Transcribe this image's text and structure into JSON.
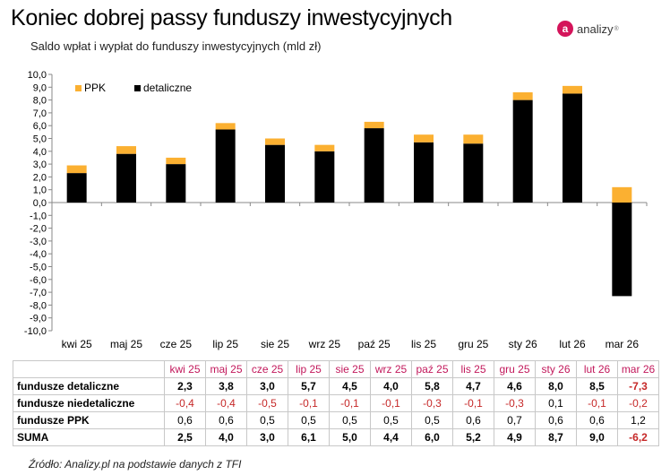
{
  "header": {
    "title": "Koniec dobrej passy funduszy inwestycyjnych",
    "subtitle": "Saldo wpłat i wypłat do funduszy inwestycyjnych (mld zł)",
    "logo_text": "analizy",
    "logo_letter": "a",
    "logo_reg": "®"
  },
  "colors": {
    "ppk": "#fbb031",
    "detaliczne": "#000000",
    "negative": "#c62828",
    "month_header": "#c2185b"
  },
  "chart_data": {
    "type": "bar",
    "stacked": true,
    "categories": [
      "kwi 25",
      "maj 25",
      "cze 25",
      "lip 25",
      "sie 25",
      "wrz 25",
      "paź 25",
      "lis 25",
      "gru 25",
      "sty 26",
      "lut 26",
      "mar 26"
    ],
    "series": [
      {
        "name": "detaliczne",
        "values": [
          2.3,
          3.8,
          3.0,
          5.7,
          4.5,
          4.0,
          5.8,
          4.7,
          4.6,
          8.0,
          8.5,
          -7.3
        ]
      },
      {
        "name": "PPK",
        "values": [
          0.6,
          0.6,
          0.5,
          0.5,
          0.5,
          0.5,
          0.5,
          0.6,
          0.7,
          0.6,
          0.6,
          1.2
        ]
      }
    ],
    "ylim": [
      -10,
      10
    ],
    "ytick_labels": [
      "10,0",
      "9,0",
      "8,0",
      "7,0",
      "6,0",
      "5,0",
      "4,0",
      "3,0",
      "2,0",
      "1,0",
      "0,0",
      "-1,0",
      "-2,0",
      "-3,0",
      "-4,0",
      "-5,0",
      "-6,0",
      "-7,0",
      "-8,0",
      "-9,0",
      "-10,0"
    ],
    "legend": [
      {
        "label": "PPK"
      },
      {
        "label": "detaliczne"
      }
    ],
    "legend_position": "top-left",
    "title": "Saldo wpłat i wypłat do funduszy inwestycyjnych (mld zł)"
  },
  "table": {
    "months": [
      "kwi 25",
      "maj 25",
      "cze 25",
      "lip 25",
      "sie 25",
      "wrz 25",
      "paź 25",
      "lis 25",
      "gru 25",
      "sty 26",
      "lut 26",
      "mar 26"
    ],
    "rows": [
      {
        "label": "fundusze detaliczne",
        "values": [
          "2,3",
          "3,8",
          "3,0",
          "5,7",
          "4,5",
          "4,0",
          "5,8",
          "4,7",
          "4,6",
          "8,0",
          "8,5",
          "-7,3"
        ],
        "bold": true
      },
      {
        "label": "fundusze niedetaliczne",
        "values": [
          "-0,4",
          "-0,4",
          "-0,5",
          "-0,1",
          "-0,1",
          "-0,1",
          "-0,3",
          "-0,1",
          "-0,3",
          "0,1",
          "-0,1",
          "-0,2"
        ],
        "bold": false
      },
      {
        "label": "fundusze PPK",
        "values": [
          "0,6",
          "0,6",
          "0,5",
          "0,5",
          "0,5",
          "0,5",
          "0,5",
          "0,6",
          "0,7",
          "0,6",
          "0,6",
          "1,2"
        ],
        "bold": false
      },
      {
        "label": "SUMA",
        "values": [
          "2,5",
          "4,0",
          "3,0",
          "6,1",
          "5,0",
          "4,4",
          "6,0",
          "5,2",
          "4,9",
          "8,7",
          "9,0",
          "-6,2"
        ],
        "bold": true
      }
    ]
  },
  "footer": {
    "source": "Źródło: Analizy.pl na podstawie danych z TFI"
  }
}
